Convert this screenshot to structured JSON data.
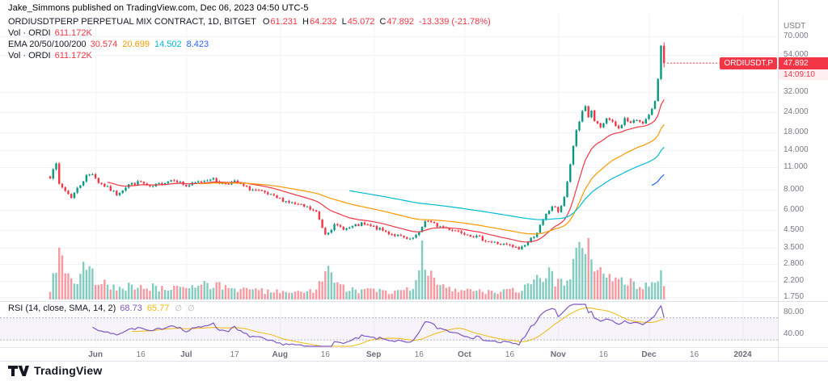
{
  "publisher_line": "Jake_Simmons published on TradingView.com, Dec 06, 2023 04:50 UTC-5",
  "header": {
    "symbol_title": "ORDIUSDTPERP PERPETUAL MIX CONTRACT, 1D, BITGET",
    "ohlc": {
      "o_label": "O",
      "o": "61.231",
      "h_label": "H",
      "h": "64.232",
      "l_label": "L",
      "l": "45.072",
      "c_label": "C",
      "c": "47.892",
      "change": "-13.339 (-21.78%)"
    },
    "vol_row": {
      "label": "Vol · ORDI",
      "value": "611.172K"
    },
    "ema_row": {
      "label": "EMA 20/50/100/200",
      "v1": "30.574",
      "v2": "20.699",
      "v3": "14.502",
      "v4": "8.423"
    },
    "vol_row2": {
      "label": "Vol · ORDI",
      "value": "611.172K"
    }
  },
  "price_axis": {
    "currency": "USDT",
    "last_price": "47.892",
    "countdown": "14:09:10",
    "symbol_badge": "ORDIUSDT.P"
  },
  "rsi_legend": {
    "label": "RSI (14, close, SMA, 14, 2)",
    "v1": "68.73",
    "v2": "65.77",
    "hidden_icon": "∅"
  },
  "footer": {
    "brand": "TradingView"
  },
  "colors": {
    "up": "#089981",
    "down": "#f23645",
    "ema20": "#f23645",
    "ema50": "#ff9800",
    "ema100": "#00bcd4",
    "ema200": "#2962ff",
    "rsi": "#7e57c2",
    "rsi_ma": "#f0b90b",
    "grid": "#f0f3fa",
    "divider": "#e0e3eb",
    "axis_text": "#787b86",
    "badge": "#f23645",
    "band_fill": "rgba(126,87,194,0.07)",
    "band_line": "#b2b5be",
    "vol_up": "rgba(8,153,129,0.5)",
    "vol_down": "rgba(242,54,69,0.5)"
  },
  "chart_data": {
    "type": "candlestick",
    "symbol": "ORDIUSDT.P",
    "contract": "ORDIUSDTPERP PERPETUAL MIX CONTRACT",
    "interval": "1D",
    "exchange": "BITGET",
    "price_scale": "log",
    "price_unit": "USDT",
    "last_candle": {
      "o": 61.231,
      "h": 64.232,
      "l": 45.072,
      "c": 47.892,
      "change": -13.339,
      "change_pct": -21.78
    },
    "last_volume_k": 611.172,
    "ema": {
      "p20": 30.574,
      "p50": 20.699,
      "p100": 14.502,
      "p200": 8.423
    },
    "ema_periods": [
      20,
      50,
      100,
      200
    ],
    "rsi_last": 68.73,
    "rsi_ma_last": 65.77,
    "y_ticks": [
      70,
      54,
      32,
      24,
      18,
      14,
      11,
      8,
      6,
      4.5,
      3.5,
      2.8,
      2.2,
      1.75
    ],
    "ylim_log": [
      1.6,
      75
    ],
    "x_ticks": [
      {
        "label": "Jun",
        "day": 15,
        "major": true
      },
      {
        "label": "16",
        "day": 30,
        "major": false
      },
      {
        "label": "Jul",
        "day": 45,
        "major": true
      },
      {
        "label": "17",
        "day": 61,
        "major": false
      },
      {
        "label": "Aug",
        "day": 76,
        "major": true
      },
      {
        "label": "16",
        "day": 91,
        "major": false
      },
      {
        "label": "Sep",
        "day": 107,
        "major": true
      },
      {
        "label": "16",
        "day": 122,
        "major": false
      },
      {
        "label": "Oct",
        "day": 137,
        "major": true
      },
      {
        "label": "16",
        "day": 152,
        "major": false
      },
      {
        "label": "Nov",
        "day": 168,
        "major": true
      },
      {
        "label": "16",
        "day": 183,
        "major": false
      },
      {
        "label": "Dec",
        "day": 198,
        "major": true
      },
      {
        "label": "16",
        "day": 213,
        "major": false
      },
      {
        "label": "2024",
        "day": 229,
        "major": true
      }
    ],
    "rsi_axis_ticks": [
      80,
      40
    ],
    "rsi_band": [
      70,
      30
    ],
    "days": 204,
    "price_keyframes": [
      [
        0,
        9.6
      ],
      [
        1,
        10.9
      ],
      [
        2,
        11.3
      ],
      [
        3,
        8.6
      ],
      [
        5,
        7.9
      ],
      [
        7,
        7.2
      ],
      [
        9,
        8.1
      ],
      [
        12,
        9.7
      ],
      [
        14,
        10.1
      ],
      [
        16,
        8.9
      ],
      [
        19,
        8.2
      ],
      [
        22,
        7.5
      ],
      [
        26,
        8.6
      ],
      [
        30,
        8.9
      ],
      [
        33,
        8.2
      ],
      [
        37,
        8.8
      ],
      [
        41,
        9.3
      ],
      [
        45,
        8.4
      ],
      [
        49,
        8.9
      ],
      [
        53,
        9.4
      ],
      [
        57,
        8.7
      ],
      [
        61,
        8.9
      ],
      [
        65,
        8.2
      ],
      [
        70,
        7.7
      ],
      [
        75,
        7.1
      ],
      [
        80,
        6.6
      ],
      [
        85,
        6.2
      ],
      [
        88,
        5.8
      ],
      [
        90,
        4.7
      ],
      [
        91,
        4.3
      ],
      [
        94,
        4.8
      ],
      [
        98,
        4.6
      ],
      [
        103,
        4.9
      ],
      [
        107,
        4.7
      ],
      [
        111,
        4.4
      ],
      [
        115,
        4.15
      ],
      [
        119,
        3.9
      ],
      [
        122,
        4.3
      ],
      [
        124,
        5.2
      ],
      [
        126,
        5.0
      ],
      [
        128,
        4.8
      ],
      [
        132,
        4.6
      ],
      [
        137,
        4.35
      ],
      [
        141,
        4.1
      ],
      [
        145,
        3.85
      ],
      [
        149,
        3.7
      ],
      [
        152,
        3.6
      ],
      [
        155,
        3.45
      ],
      [
        158,
        3.8
      ],
      [
        161,
        4.4
      ],
      [
        164,
        5.6
      ],
      [
        166,
        6.35
      ],
      [
        168,
        5.9
      ],
      [
        169,
        6.4
      ],
      [
        170,
        7.2
      ],
      [
        171,
        8.8
      ],
      [
        172,
        11.5
      ],
      [
        173,
        14.5
      ],
      [
        174,
        18.5
      ],
      [
        175,
        21.0
      ],
      [
        176,
        24.5
      ],
      [
        177,
        26.0
      ],
      [
        178,
        22.5
      ],
      [
        179,
        24.0
      ],
      [
        180,
        21.0
      ],
      [
        182,
        19.0
      ],
      [
        184,
        22.0
      ],
      [
        186,
        20.5
      ],
      [
        188,
        18.9
      ],
      [
        190,
        21.8
      ],
      [
        192,
        20.5
      ],
      [
        194,
        21.5
      ],
      [
        196,
        20.8
      ],
      [
        197,
        21.5
      ],
      [
        198,
        22.8
      ],
      [
        199,
        24.5
      ],
      [
        200,
        28.0
      ],
      [
        201,
        38.3
      ],
      [
        202,
        61.231
      ],
      [
        203,
        47.892
      ]
    ],
    "volume_keyframes_k": [
      [
        0,
        500
      ],
      [
        2,
        1500
      ],
      [
        3,
        2300
      ],
      [
        5,
        1100
      ],
      [
        8,
        700
      ],
      [
        12,
        1600
      ],
      [
        14,
        1100
      ],
      [
        18,
        750
      ],
      [
        22,
        550
      ],
      [
        30,
        650
      ],
      [
        38,
        480
      ],
      [
        45,
        520
      ],
      [
        53,
        680
      ],
      [
        61,
        480
      ],
      [
        70,
        380
      ],
      [
        80,
        330
      ],
      [
        88,
        480
      ],
      [
        90,
        1250
      ],
      [
        91,
        1500
      ],
      [
        95,
        650
      ],
      [
        100,
        430
      ],
      [
        107,
        380
      ],
      [
        115,
        330
      ],
      [
        119,
        550
      ],
      [
        121,
        800
      ],
      [
        123,
        2500
      ],
      [
        125,
        1400
      ],
      [
        128,
        700
      ],
      [
        132,
        550
      ],
      [
        137,
        420
      ],
      [
        141,
        360
      ],
      [
        148,
        330
      ],
      [
        152,
        380
      ],
      [
        158,
        550
      ],
      [
        161,
        850
      ],
      [
        164,
        1300
      ],
      [
        166,
        1000
      ],
      [
        168,
        750
      ],
      [
        170,
        900
      ],
      [
        172,
        1400
      ],
      [
        174,
        2100
      ],
      [
        176,
        3300
      ],
      [
        177,
        2800
      ],
      [
        178,
        2300
      ],
      [
        180,
        1800
      ],
      [
        182,
        1400
      ],
      [
        184,
        1150
      ],
      [
        186,
        950
      ],
      [
        188,
        850
      ],
      [
        190,
        800
      ],
      [
        193,
        700
      ],
      [
        196,
        600
      ],
      [
        198,
        560
      ],
      [
        200,
        850
      ],
      [
        201,
        1050
      ],
      [
        202,
        1500
      ],
      [
        203,
        611.172
      ]
    ]
  }
}
